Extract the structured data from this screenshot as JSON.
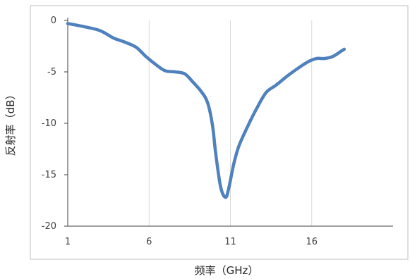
{
  "chart_data": {
    "type": "line",
    "title": "",
    "xlabel": "频率（GHz）",
    "ylabel": "反射率（dB）",
    "xlim": [
      1,
      21
    ],
    "ylim": [
      -20,
      0
    ],
    "x_ticks": [
      1,
      6,
      11,
      16
    ],
    "x_tick_labels": [
      "1",
      "6",
      "11",
      "16"
    ],
    "y_ticks": [
      0,
      -5,
      -10,
      -15,
      -20
    ],
    "y_tick_labels": [
      "0",
      "-5",
      "-10",
      "-15",
      "-20"
    ],
    "grid": {
      "vertical": true,
      "horizontal": false
    },
    "legend": "none",
    "colors": {
      "series": "#4f81bd",
      "grid": "#d9d9d9",
      "frame": "#bfbfbf",
      "axis": "#404040"
    },
    "series": [
      {
        "x": [
          1.0,
          2.0,
          3.0,
          3.8,
          4.5,
          5.2,
          5.8,
          6.5,
          7.0,
          7.6,
          8.2,
          8.7,
          9.2,
          9.6,
          9.9,
          10.1,
          10.4,
          10.7,
          10.9,
          11.2,
          11.5,
          12.0,
          12.6,
          13.2,
          13.8,
          14.5,
          15.2,
          15.8,
          16.3,
          16.8,
          17.3,
          17.8,
          18.0
        ],
        "y": [
          -0.3,
          -0.6,
          -1.0,
          -1.7,
          -2.1,
          -2.6,
          -3.5,
          -4.4,
          -4.9,
          -5.0,
          -5.2,
          -6.0,
          -6.9,
          -8.0,
          -10.2,
          -13.0,
          -16.2,
          -17.2,
          -16.3,
          -14.0,
          -12.3,
          -10.5,
          -8.6,
          -7.0,
          -6.3,
          -5.4,
          -4.6,
          -4.0,
          -3.7,
          -3.7,
          -3.5,
          -3.0,
          -2.8
        ]
      }
    ]
  }
}
